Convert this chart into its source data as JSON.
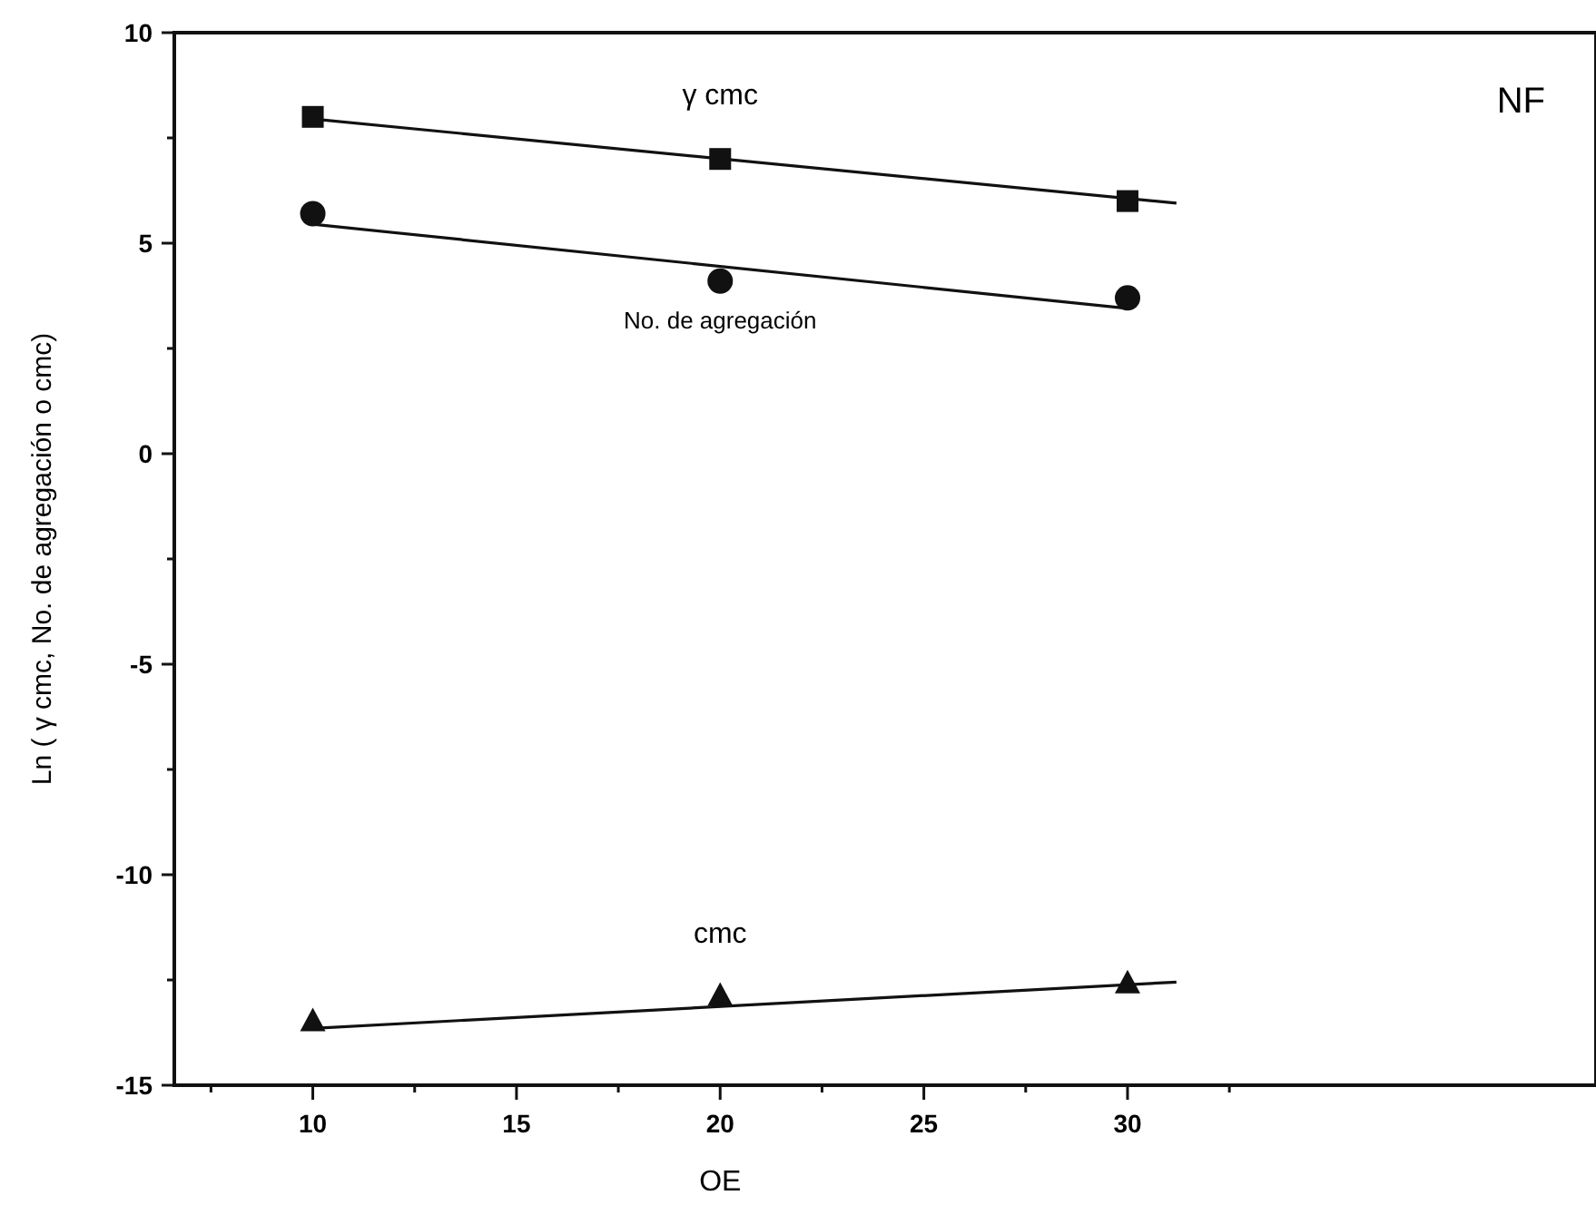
{
  "chart_data": {
    "type": "scatter",
    "xlabel": "OE",
    "ylabel": "Ln ( γ cmc, No. de agregación o cmc)",
    "xlim": [
      6.6,
      41.5
    ],
    "ylim": [
      -15,
      10
    ],
    "xticks": [
      {
        "value": 7.5,
        "label": null
      },
      10,
      {
        "value": 12.5,
        "label": null
      },
      15,
      {
        "value": 17.5,
        "label": null
      },
      20,
      {
        "value": 22.5,
        "label": null
      },
      25,
      {
        "value": 27.5,
        "label": null
      },
      30,
      {
        "value": 32.5,
        "label": null
      }
    ],
    "yticks": [
      -15,
      {
        "value": -12.5,
        "label": null
      },
      -10,
      {
        "value": -7.5,
        "label": null
      },
      -5,
      {
        "value": -2.5,
        "label": null
      },
      0,
      {
        "value": 2.5,
        "label": null
      },
      5,
      {
        "value": 7.5,
        "label": null
      },
      10
    ],
    "series": [
      {
        "name": "γ cmc",
        "marker": "square",
        "color": "#111111",
        "x": [
          10,
          20,
          30
        ],
        "values": [
          8.0,
          7.0,
          6.0
        ]
      },
      {
        "name": "No. de agregación",
        "marker": "circle",
        "color": "#111111",
        "x": [
          10,
          20,
          30
        ],
        "values": [
          5.7,
          4.1,
          3.7
        ]
      },
      {
        "name": "cmc",
        "marker": "triangle",
        "color": "#111111",
        "x": [
          10,
          20,
          30
        ],
        "values": [
          -13.5,
          -12.9,
          -12.6
        ]
      },
      {
        "type": "line",
        "marker": "none",
        "line_style": "solid",
        "color": "#111111",
        "x": [
          10,
          31.2
        ],
        "values": [
          7.95,
          5.95
        ]
      },
      {
        "type": "line",
        "marker": "none",
        "line_style": "solid",
        "color": "#111111",
        "x": [
          10,
          30
        ],
        "values": [
          5.45,
          3.45
        ]
      },
      {
        "type": "line",
        "marker": "none",
        "line_style": "solid",
        "color": "#111111",
        "x": [
          10,
          31.2
        ],
        "values": [
          -13.65,
          -12.55
        ]
      }
    ],
    "annotations": [
      "NF"
    ]
  }
}
